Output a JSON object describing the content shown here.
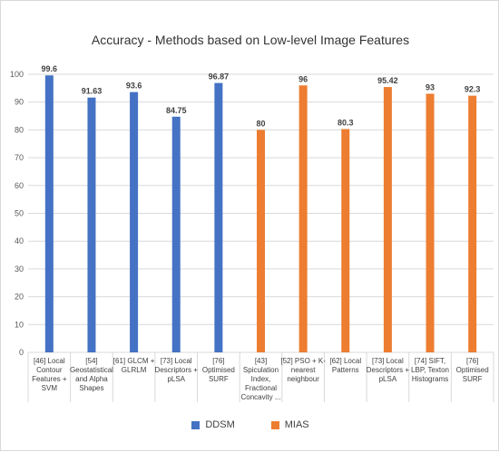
{
  "chart_data": {
    "type": "bar",
    "title": "Accuracy - Methods based on Low-level Image Features",
    "xlabel": "",
    "ylabel": "",
    "ylim": [
      0,
      100
    ],
    "yticks": [
      0,
      10,
      20,
      30,
      40,
      50,
      60,
      70,
      80,
      90,
      100
    ],
    "grid": "horizontal",
    "legend_position": "bottom",
    "categories": [
      [
        "[46] Local",
        "Contour",
        "Features +",
        "SVM"
      ],
      [
        "[54]",
        "Geostatistical",
        "and Alpha",
        "Shapes"
      ],
      [
        "[61] GLCM +",
        "GLRLM"
      ],
      [
        "[73] Local",
        "Descriptors +",
        "pLSA"
      ],
      [
        "[76]",
        "Optimised",
        "SURF"
      ],
      [
        "[43]",
        "Spiculation",
        "Index,",
        "Fractional",
        "Concavity ..."
      ],
      [
        "[52] PSO + K-",
        "nearest",
        "neighbour"
      ],
      [
        "[62] Local",
        "Patterns"
      ],
      [
        "[73] Local",
        "Descriptors +",
        "pLSA"
      ],
      [
        "[74] SIFT,",
        "LBP, Texton",
        "Histograms"
      ],
      [
        "[76]",
        "Optimised",
        "SURF"
      ]
    ],
    "series": [
      {
        "name": "DDSM",
        "color": "#4472C4",
        "values": [
          99.6,
          91.63,
          93.6,
          84.75,
          96.87,
          null,
          null,
          null,
          null,
          null,
          null
        ]
      },
      {
        "name": "MIAS",
        "color": "#ED7D31",
        "values": [
          null,
          null,
          null,
          null,
          null,
          80,
          96,
          80.3,
          95.42,
          93,
          92.3
        ]
      }
    ]
  }
}
